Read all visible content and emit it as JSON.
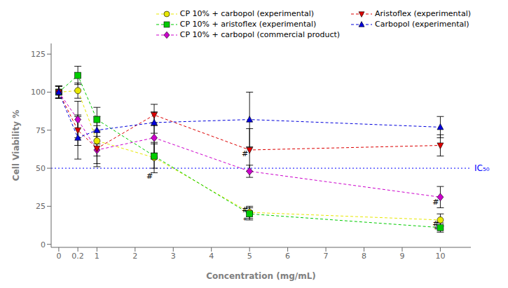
{
  "chart_data": {
    "type": "line",
    "xlabel": "Concentration (mg/mL)",
    "ylabel": "Cell Viability %",
    "x": [
      0,
      0.2,
      1,
      2.5,
      5,
      10
    ],
    "series": [
      {
        "name": "CP 10% + carbopol (experimental)",
        "color": "#e8e800",
        "marker": "circle",
        "line_style": "dashed",
        "values": [
          100,
          101,
          68,
          57,
          21,
          16
        ],
        "errors": [
          4,
          5,
          10,
          10,
          4,
          4
        ]
      },
      {
        "name": "CP 10% + aristoflex (experimental)",
        "color": "#00cc00",
        "marker": "square",
        "line_style": "dashed",
        "values": [
          100,
          111,
          82,
          58,
          20,
          11
        ],
        "errors": [
          4,
          6,
          8,
          8,
          4,
          3
        ]
      },
      {
        "name": "CP 10% + carbopol (commercial product)",
        "color": "#cc00cc",
        "marker": "diamond",
        "line_style": "dashed",
        "values": [
          100,
          82,
          62,
          70,
          48,
          31
        ],
        "errors": [
          4,
          12,
          9,
          10,
          4,
          7
        ]
      },
      {
        "name": "Aristoflex (experimental)",
        "color": "#dd0000",
        "marker": "triangle-down",
        "line_style": "dashed",
        "values": [
          100,
          75,
          63,
          85,
          62,
          65
        ],
        "errors": [
          4,
          10,
          12,
          7,
          14,
          7
        ]
      },
      {
        "name": "Carbopol (experimental)",
        "color": "#0000dd",
        "marker": "triangle-up",
        "line_style": "dashed",
        "values": [
          100,
          70,
          75,
          80,
          82,
          77
        ],
        "errors": [
          4,
          14,
          9,
          7,
          18,
          7
        ]
      }
    ],
    "xlim": [
      -0.08,
      10.8
    ],
    "xticks": [
      0,
      0.2,
      1,
      2,
      3,
      4,
      5,
      6,
      7,
      8,
      9,
      10
    ],
    "ylim": [
      -2,
      132
    ],
    "yticks": [
      0,
      25,
      50,
      75,
      100,
      125
    ],
    "grid": false,
    "legend": "upper right",
    "reference_lines": [
      {
        "y": 50,
        "label": "IC₅₀",
        "color": "#0000ff",
        "line_style": "dotted"
      }
    ],
    "annotations": [
      {
        "x": 2.5,
        "y": 43,
        "text": "#"
      },
      {
        "x": 5.0,
        "y": 14,
        "text": "*"
      },
      {
        "x": 5.0,
        "y": 21,
        "text": "#"
      },
      {
        "x": 5.0,
        "y": 58,
        "text": "#"
      },
      {
        "x": 10.0,
        "y": 8,
        "text": "*"
      },
      {
        "x": 10.0,
        "y": 12,
        "text": "#"
      },
      {
        "x": 10.0,
        "y": 26,
        "text": "#"
      }
    ]
  }
}
